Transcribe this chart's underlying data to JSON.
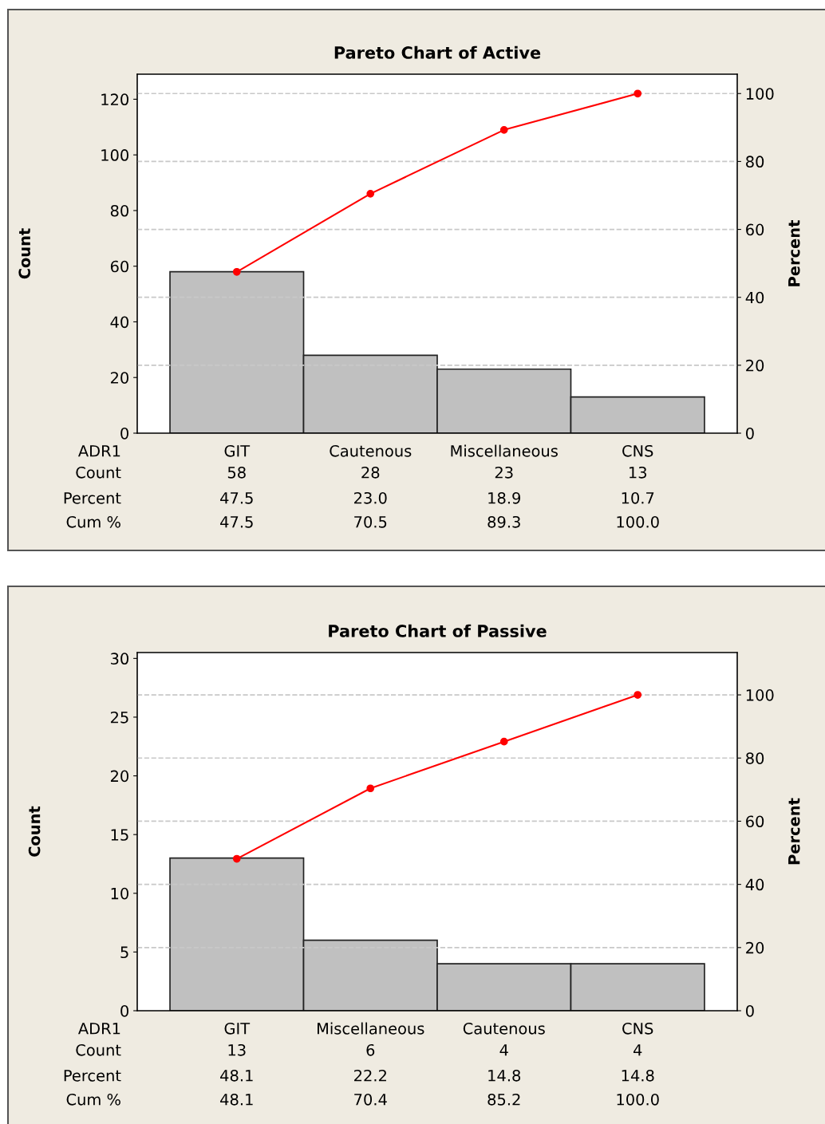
{
  "chart_data": [
    {
      "type": "bar",
      "title": "Pareto Chart of Active",
      "xlabel": "ADR1",
      "ylabel": "Count",
      "y2label": "Percent",
      "categories": [
        "GIT",
        "Cautenous",
        "Miscellaneous",
        "CNS"
      ],
      "series": [
        {
          "color": "#c0c0c0",
          "values": [
            58,
            28,
            23,
            13
          ],
          "value_labels": [
            "58",
            "28",
            "23",
            "13"
          ]
        },
        {
          "type": "line",
          "axis": "y2",
          "color": "#ff0000",
          "marker": "circle",
          "values": [
            47.5,
            70.5,
            89.3,
            100.0
          ],
          "value_labels": [
            "47.5",
            "70.5",
            "89.3",
            "100.0"
          ]
        }
      ],
      "annotations": [
        "Count",
        "Percent",
        "Cum %",
        "47.5",
        "23.0",
        "18.9",
        "10.7"
      ],
      "ylim": [
        0,
        129
      ],
      "yticks": [
        0,
        20,
        40,
        60,
        80,
        100,
        120
      ],
      "y2lim": [
        0,
        105.7
      ],
      "y2ticks": [
        0,
        20,
        40,
        60,
        80,
        100
      ],
      "ref_lines": [
        {
          "axis": "y2",
          "value": 20,
          "line_style": "dashed",
          "color": "#c8c8c8"
        },
        {
          "axis": "y2",
          "value": 40,
          "line_style": "dashed",
          "color": "#c8c8c8"
        },
        {
          "axis": "y2",
          "value": 60,
          "line_style": "dashed",
          "color": "#c8c8c8"
        },
        {
          "axis": "y2",
          "value": 80,
          "line_style": "dashed",
          "color": "#c8c8c8"
        },
        {
          "axis": "y2",
          "value": 100,
          "line_style": "dashed",
          "color": "#c8c8c8"
        }
      ],
      "legend": false
    },
    {
      "type": "bar",
      "title": "Pareto Chart of Passive",
      "xlabel": "ADR1",
      "ylabel": "Count",
      "y2label": "Percent",
      "categories": [
        "GIT",
        "Miscellaneous",
        "Cautenous",
        "CNS"
      ],
      "series": [
        {
          "color": "#c0c0c0",
          "values": [
            13,
            6,
            4,
            4
          ],
          "value_labels": [
            "13",
            "6",
            "4",
            "4"
          ]
        },
        {
          "type": "line",
          "axis": "y2",
          "color": "#ff0000",
          "marker": "circle",
          "values": [
            48.1,
            70.4,
            85.2,
            100.0
          ],
          "value_labels": [
            "48.1",
            "70.4",
            "85.2",
            "100.0"
          ]
        }
      ],
      "annotations": [
        "Count",
        "Percent",
        "Cum %",
        "48.1",
        "22.2",
        "14.8",
        "14.8"
      ],
      "ylim": [
        0,
        30.5
      ],
      "yticks": [
        0,
        5,
        10,
        15,
        20,
        25,
        30
      ],
      "y2lim": [
        0,
        113.4
      ],
      "y2ticks": [
        0,
        20,
        40,
        60,
        80,
        100
      ],
      "ref_lines": [
        {
          "axis": "y2",
          "value": 20,
          "line_style": "dashed",
          "color": "#c8c8c8"
        },
        {
          "axis": "y2",
          "value": 40,
          "line_style": "dashed",
          "color": "#c8c8c8"
        },
        {
          "axis": "y2",
          "value": 60,
          "line_style": "dashed",
          "color": "#c8c8c8"
        },
        {
          "axis": "y2",
          "value": 80,
          "line_style": "dashed",
          "color": "#c8c8c8"
        },
        {
          "axis": "y2",
          "value": 100,
          "line_style": "dashed",
          "color": "#c8c8c8"
        }
      ],
      "legend": false
    }
  ]
}
